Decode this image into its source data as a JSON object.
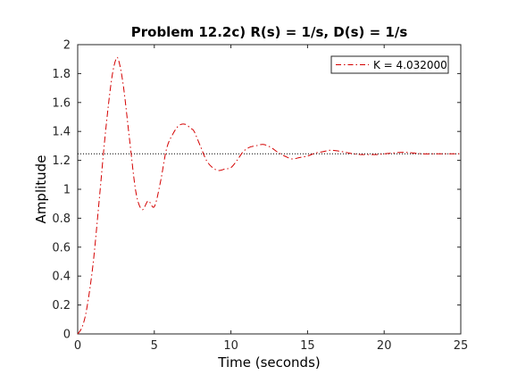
{
  "chart_data": {
    "type": "line",
    "title": "Problem 12.2c) R(s) = 1/s, D(s) = 1/s",
    "xlabel": "Time (seconds)",
    "ylabel": "Amplitude",
    "xlim": [
      0,
      25
    ],
    "ylim": [
      0,
      2
    ],
    "xticks": [
      0,
      5,
      10,
      15,
      20,
      25
    ],
    "yticks": [
      0,
      0.2,
      0.4,
      0.6,
      0.8,
      1,
      1.2,
      1.4,
      1.6,
      1.8,
      2
    ],
    "xtick_labels": [
      "0",
      "5",
      "10",
      "15",
      "20",
      "25"
    ],
    "ytick_labels": [
      "0",
      "0.2",
      "0.4",
      "0.6",
      "0.8",
      "1",
      "1.2",
      "1.4",
      "1.6",
      "1.8",
      "2"
    ],
    "grid": false,
    "legend": {
      "position": "top-right",
      "entries": [
        "K = 4.032000"
      ]
    },
    "reference_line": {
      "y": 1.245,
      "style": "dotted",
      "color": "#000000"
    },
    "series": [
      {
        "name": "K = 4.032000",
        "color": "#d40000",
        "style": "dash-dot",
        "x": [
          0,
          0.3,
          0.6,
          1.0,
          1.4,
          1.8,
          2.2,
          2.5,
          2.7,
          3.0,
          3.4,
          3.8,
          4.2,
          4.6,
          5.0,
          5.4,
          5.8,
          6.2,
          6.6,
          7.0,
          7.4,
          7.6,
          8.0,
          8.4,
          8.8,
          9.2,
          9.6,
          10.0,
          10.4,
          10.8,
          11.2,
          11.6,
          12.1,
          12.6,
          13.0,
          13.5,
          14.0,
          14.5,
          15.0,
          15.5,
          16.0,
          16.5,
          17.0,
          17.5,
          18.0,
          18.5,
          19.0,
          19.5,
          20.0,
          20.5,
          21.0,
          21.5,
          22.0,
          22.5,
          23.0,
          23.5,
          24.0,
          24.5,
          25.0
        ],
        "values": [
          0,
          0.05,
          0.18,
          0.48,
          0.92,
          1.38,
          1.75,
          1.9,
          1.88,
          1.7,
          1.33,
          0.98,
          0.86,
          0.92,
          0.88,
          1.05,
          1.28,
          1.38,
          1.44,
          1.45,
          1.42,
          1.4,
          1.3,
          1.2,
          1.15,
          1.13,
          1.14,
          1.15,
          1.2,
          1.26,
          1.29,
          1.3,
          1.31,
          1.29,
          1.26,
          1.23,
          1.21,
          1.22,
          1.23,
          1.25,
          1.26,
          1.27,
          1.265,
          1.255,
          1.245,
          1.24,
          1.24,
          1.24,
          1.245,
          1.25,
          1.255,
          1.255,
          1.25,
          1.245,
          1.245,
          1.245,
          1.245,
          1.245,
          1.245
        ]
      }
    ]
  }
}
